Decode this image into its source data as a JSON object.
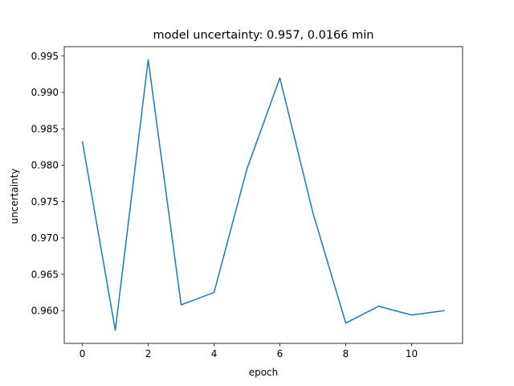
{
  "chart_data": {
    "type": "line",
    "title": "model uncertainty: 0.957, 0.0166 min",
    "xlabel": "epoch",
    "ylabel": "uncertainty",
    "xlim": [
      -0.55,
      11.55
    ],
    "ylim": [
      0.9555,
      0.9963
    ],
    "xticks": [
      0,
      2,
      4,
      6,
      8,
      10
    ],
    "xtick_labels": [
      "0",
      "2",
      "4",
      "6",
      "8",
      "10"
    ],
    "yticks": [
      0.96,
      0.965,
      0.97,
      0.975,
      0.98,
      0.985,
      0.99,
      0.995
    ],
    "ytick_labels": [
      "0.960",
      "0.965",
      "0.970",
      "0.975",
      "0.980",
      "0.985",
      "0.990",
      "0.995"
    ],
    "grid": false,
    "series": [
      {
        "color": "#1f77b4",
        "x": [
          0,
          1,
          2,
          3,
          4,
          5,
          6,
          7,
          8,
          9,
          10,
          11
        ],
        "values": [
          0.9833,
          0.9573,
          0.9945,
          0.9608,
          0.9625,
          0.9795,
          0.992,
          0.9735,
          0.9583,
          0.9606,
          0.9594,
          0.96
        ]
      }
    ]
  }
}
